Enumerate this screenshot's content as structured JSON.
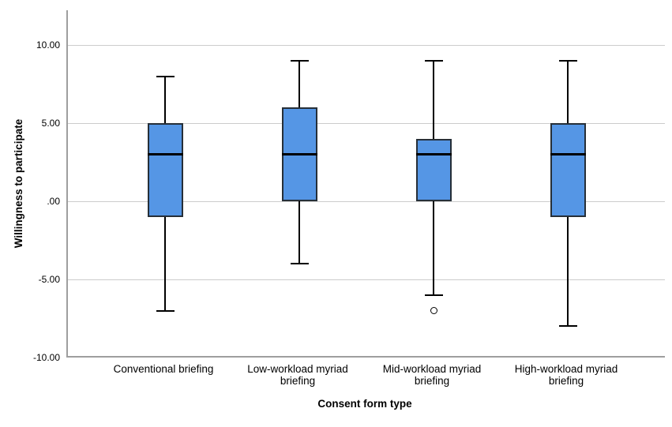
{
  "chart_data": {
    "type": "boxplot",
    "title": "",
    "xlabel": "Consent form type",
    "ylabel": "Willingness to participate",
    "ylim": [
      -10,
      10
    ],
    "grid": true,
    "legend": false,
    "yticks": [
      {
        "value": 10,
        "label": "10.00"
      },
      {
        "value": 5,
        "label": "5.00"
      },
      {
        "value": 0,
        "label": ".00"
      },
      {
        "value": -5,
        "label": "-5.00"
      },
      {
        "value": -10,
        "label": "-10.00"
      }
    ],
    "categories": [
      "Conventional briefing",
      "Low-workload myriad briefing",
      "Mid-workload myriad briefing",
      "High-workload myriad briefing"
    ],
    "series": [
      {
        "category": "Conventional briefing",
        "whisker_low": -7,
        "q1": -1,
        "median": 3,
        "q3": 5,
        "whisker_high": 8,
        "outliers": []
      },
      {
        "category": "Low-workload myriad briefing",
        "whisker_low": -4,
        "q1": 0,
        "median": 3,
        "q3": 6,
        "whisker_high": 9,
        "outliers": []
      },
      {
        "category": "Mid-workload myriad briefing",
        "whisker_low": -6,
        "q1": 0,
        "median": 3,
        "q3": 4,
        "whisker_high": 9,
        "outliers": [
          -7
        ]
      },
      {
        "category": "High-workload myriad briefing",
        "whisker_low": -8,
        "q1": -1,
        "median": 3,
        "q3": 5,
        "whisker_high": 9,
        "outliers": []
      }
    ],
    "colors": {
      "box_fill": "#5596e5",
      "box_border": "#262f38",
      "median": "#000000",
      "whisker": "#000000",
      "gridline": "#cccccc",
      "axis_line": "#9e9e9e",
      "text": "#000000",
      "background": "#ffffff"
    }
  }
}
